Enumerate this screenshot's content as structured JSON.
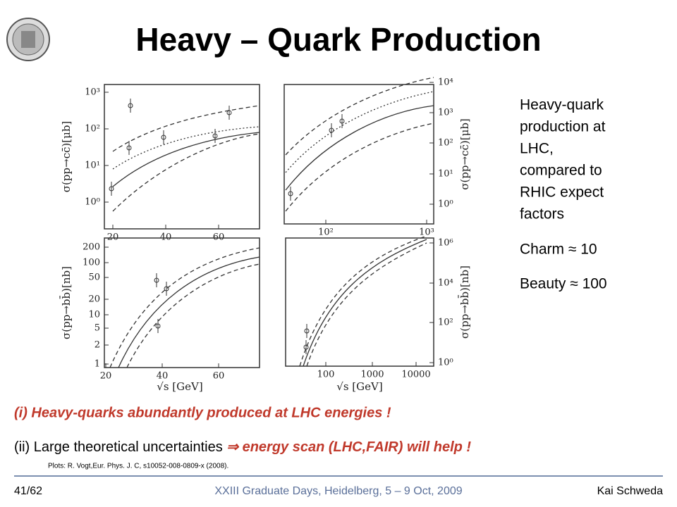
{
  "header": {
    "title": "Heavy – Quark Production"
  },
  "panels": [
    {
      "ylabel": "σ(pp→cc̄)[μb]",
      "xticks": [
        "20",
        "40",
        "60"
      ],
      "yticks": [
        "10⁰",
        "10¹",
        "10²",
        "10³"
      ]
    },
    {
      "ylabel": "σ(pp→cc̄)[μb]",
      "xticks": [
        "10²",
        "10³"
      ],
      "yticks": [
        "10⁰",
        "10¹",
        "10²",
        "10³",
        "10⁴"
      ]
    },
    {
      "ylabel": "σ(pp→bb̄)[nb]",
      "xlabel": "√s  [GeV]",
      "xticks": [
        "20",
        "40",
        "60"
      ],
      "yticks": [
        "1",
        "2",
        "5",
        "10",
        "20",
        "50",
        "100",
        "200"
      ]
    },
    {
      "ylabel": "σ(pp→bb̄)[nb]",
      "xlabel": "√s  [GeV]",
      "xticks": [
        "100",
        "1000",
        "10000"
      ],
      "yticks": [
        "10⁰",
        "10²",
        "10⁴",
        "10⁶"
      ]
    }
  ],
  "description": {
    "lines": [
      "Heavy-quark",
      "production at",
      "LHC,",
      "compared to",
      "RHIC expect",
      "factors"
    ],
    "charm": "Charm ≈ 10",
    "beauty": "Beauty ≈ 100"
  },
  "findings": {
    "first": "(i) Heavy-quarks abundantly produced at LHC energies !",
    "second_plain": "(ii) Large theoretical uncertainties ",
    "second_emph": "⇒ energy scan (LHC,FAIR) will help !"
  },
  "credit": "Plots: R. Vogt,Eur. Phys. J. C, s10052-008-0809-x  (2008).",
  "footer": {
    "page": "41/62",
    "event": "XXIII Graduate Days, Heidelberg, 5 – 9 Oct, 2009",
    "author": "Kai Schweda"
  }
}
